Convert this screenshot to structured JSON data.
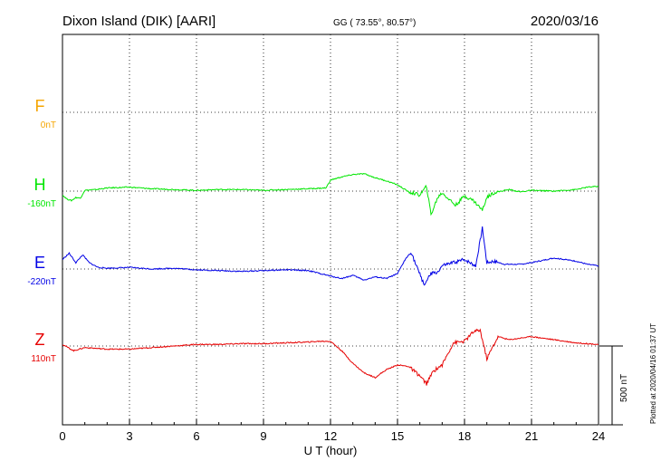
{
  "header": {
    "station": "Dixon Island (DIK)  [AARI]",
    "coords": "GG ( 73.55°,  80.57°)",
    "date": "2020/03/16"
  },
  "plotted_at": "Plotted at 2020/04/16 01:37 UT",
  "scale_bar_label": "500 nT",
  "chart_data": {
    "type": "line",
    "title": "Dixon Island (DIK)  [AARI]",
    "xlabel": "U T (hour)",
    "ylabel": "",
    "xlim": [
      0,
      24
    ],
    "x_ticks": [
      0,
      3,
      6,
      9,
      12,
      15,
      18,
      21,
      24
    ],
    "x_tick_labels": [
      "0",
      "3",
      "6",
      "9",
      "12",
      "15",
      "18",
      "21",
      "24"
    ],
    "y_units": "nT (relative to channel baseline)",
    "y_scale_note": "500 nT per bar",
    "grid": true,
    "series": [
      {
        "name": "F",
        "baseline_label": "0nT",
        "color": "#f5a500",
        "x": [],
        "y": []
      },
      {
        "name": "H",
        "baseline_label": "-160nT",
        "color": "#00e600",
        "x": [
          0,
          0.2,
          0.4,
          0.6,
          0.8,
          1.0,
          1.5,
          2,
          3,
          4,
          5,
          6,
          7,
          8,
          9,
          10,
          11,
          11.8,
          12,
          12.5,
          13,
          13.5,
          14,
          14.5,
          15,
          15.5,
          16,
          16.3,
          16.5,
          16.8,
          17,
          17.3,
          17.6,
          18,
          18.4,
          18.8,
          19,
          19.3,
          20,
          20.5,
          21,
          22,
          23,
          23.5,
          24
        ],
        "y": [
          -25,
          -50,
          -60,
          -40,
          -45,
          5,
          10,
          20,
          25,
          15,
          10,
          5,
          10,
          10,
          5,
          10,
          15,
          20,
          70,
          90,
          105,
          110,
          85,
          65,
          40,
          -5,
          -25,
          30,
          -150,
          -40,
          -10,
          -50,
          -90,
          -30,
          -60,
          -120,
          -40,
          -10,
          10,
          -5,
          5,
          0,
          10,
          25,
          30
        ]
      },
      {
        "name": "E",
        "baseline_label": "-220nT",
        "color": "#0000e6",
        "x": [
          0,
          0.3,
          0.6,
          0.9,
          1.2,
          1.6,
          2,
          3,
          4,
          5,
          6,
          7,
          8,
          9,
          10,
          11,
          12,
          12.5,
          13,
          13.5,
          14,
          14.5,
          15,
          15.3,
          15.6,
          15.9,
          16.2,
          16.5,
          16.8,
          17,
          17.5,
          18,
          18.5,
          18.8,
          19,
          19.3,
          19.8,
          20.5,
          21,
          22,
          23,
          23.5,
          24
        ],
        "y": [
          60,
          100,
          40,
          90,
          40,
          10,
          5,
          10,
          0,
          5,
          -5,
          -10,
          -15,
          -10,
          -5,
          -10,
          -45,
          -60,
          -40,
          -70,
          -50,
          -60,
          -30,
          50,
          110,
          0,
          -100,
          -30,
          -20,
          20,
          40,
          60,
          20,
          260,
          40,
          50,
          30,
          30,
          40,
          70,
          50,
          30,
          20
        ]
      },
      {
        "name": "Z",
        "baseline_label": "110nT",
        "color": "#e60000",
        "x": [
          0,
          0.5,
          1,
          2,
          3,
          4,
          5,
          6,
          7,
          8,
          9,
          10,
          11,
          11.5,
          12,
          12.5,
          13,
          13.5,
          14,
          14.5,
          15,
          15.5,
          16,
          16.3,
          16.6,
          17,
          17.5,
          18,
          18.4,
          18.7,
          19,
          19.5,
          20,
          20.5,
          21,
          22,
          23,
          24
        ],
        "y": [
          10,
          -30,
          -10,
          -20,
          -20,
          -10,
          0,
          10,
          10,
          15,
          15,
          20,
          25,
          30,
          30,
          -30,
          -110,
          -170,
          -200,
          -150,
          -120,
          -130,
          -190,
          -240,
          -160,
          -120,
          20,
          30,
          90,
          100,
          -80,
          60,
          40,
          50,
          60,
          40,
          20,
          10
        ]
      }
    ]
  }
}
